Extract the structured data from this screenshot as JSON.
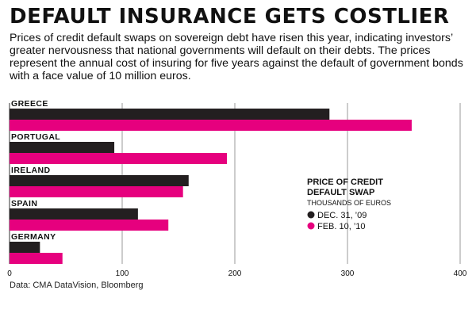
{
  "title": "DEFAULT INSURANCE GETS COSTLIER",
  "subtitle": "Prices of credit default swaps on sovereign debt have risen this year, indicating investors’ greater nervousness that national governments will default on their debts. The prices represent the annual cost of insuring for five years against the default of government bonds with a face value of 10 million euros.",
  "source": "Data: CMA DataVision, Bloomberg",
  "chart_data": {
    "type": "bar",
    "orientation": "horizontal",
    "categories": [
      "GREECE",
      "PORTUGAL",
      "IRELAND",
      "SPAIN",
      "GERMANY"
    ],
    "series": [
      {
        "name": "DEC. 31, ’09",
        "color": "#231f20",
        "values": [
          284,
          93,
          159,
          114,
          27
        ]
      },
      {
        "name": "FEB. 10, ’10",
        "color": "#e6007e",
        "values": [
          357,
          193,
          154,
          141,
          47
        ]
      }
    ],
    "xlim": [
      0,
      400
    ],
    "xticks": [
      0,
      100,
      200,
      300,
      400
    ],
    "grid": true,
    "legend": {
      "title_line1": "PRICE OF CREDIT",
      "title_line2": "DEFAULT SWAP",
      "subtitle": "THOUSANDS OF EUROS",
      "placement": "right"
    }
  }
}
